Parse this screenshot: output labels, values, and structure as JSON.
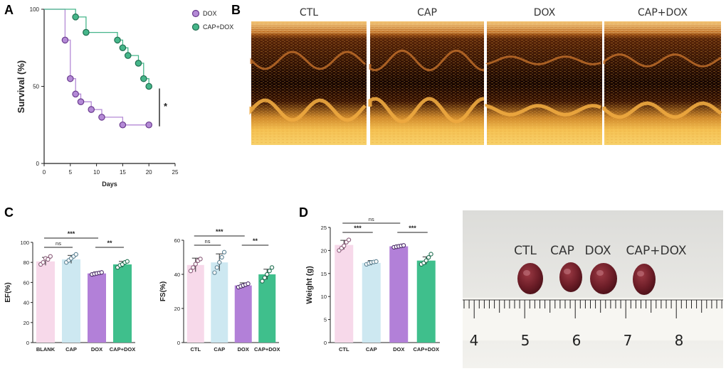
{
  "panels": {
    "a": "A",
    "b": "B",
    "c": "C",
    "d": "D"
  },
  "colors": {
    "dox": "#b48ad6",
    "dox_dark": "#6a3b8f",
    "cap_dox": "#46b68a",
    "cap_dox_dark": "#1f6e50",
    "blank": "#f7d9ea",
    "cap": "#cde8f1",
    "dox_bar": "#b280d8",
    "capdox_bar": "#3fbf8c"
  },
  "chart_data": [
    {
      "type": "line",
      "id": "survival",
      "title": "",
      "xlabel": "Days",
      "ylabel": "Survival (%)",
      "xlim": [
        0,
        25
      ],
      "ylim": [
        0,
        100
      ],
      "xticks": [
        "0",
        "5",
        "10",
        "15",
        "20",
        "25"
      ],
      "yticks": [
        "0",
        "50",
        "100"
      ],
      "significance": "*",
      "legend": "top-right",
      "series": [
        {
          "name": "DOX",
          "steps": [
            [
              0,
              100
            ],
            [
              4,
              100
            ],
            [
              4,
              80
            ],
            [
              5,
              80
            ],
            [
              5,
              55
            ],
            [
              6,
              55
            ],
            [
              6,
              45
            ],
            [
              7,
              45
            ],
            [
              7,
              40
            ],
            [
              9,
              40
            ],
            [
              9,
              35
            ],
            [
              11,
              35
            ],
            [
              11,
              30
            ],
            [
              15,
              30
            ],
            [
              15,
              25
            ],
            [
              20,
              25
            ]
          ],
          "points": [
            [
              4,
              80
            ],
            [
              5,
              55
            ],
            [
              6,
              45
            ],
            [
              7,
              40
            ],
            [
              9,
              35
            ],
            [
              11,
              30
            ],
            [
              15,
              25
            ],
            [
              20,
              25
            ]
          ]
        },
        {
          "name": "CAP+DOX",
          "steps": [
            [
              0,
              100
            ],
            [
              6,
              100
            ],
            [
              6,
              95
            ],
            [
              8,
              95
            ],
            [
              8,
              85
            ],
            [
              14,
              85
            ],
            [
              14,
              80
            ],
            [
              15,
              80
            ],
            [
              15,
              75
            ],
            [
              16,
              75
            ],
            [
              16,
              70
            ],
            [
              18,
              70
            ],
            [
              18,
              65
            ],
            [
              19,
              65
            ],
            [
              19,
              55
            ],
            [
              20,
              55
            ],
            [
              20,
              50
            ]
          ],
          "points": [
            [
              6,
              95
            ],
            [
              8,
              85
            ],
            [
              14,
              80
            ],
            [
              15,
              75
            ],
            [
              16,
              70
            ],
            [
              18,
              65
            ],
            [
              19,
              55
            ],
            [
              20,
              50
            ]
          ]
        }
      ]
    },
    {
      "type": "bar",
      "id": "ef",
      "ylabel": "EF(%)",
      "ylim": [
        0,
        100
      ],
      "yticks": [
        "0",
        "20",
        "40",
        "60",
        "80",
        "100"
      ],
      "categories": [
        "BLANK",
        "CAP",
        "DOX",
        "CAP+DOX"
      ],
      "values": [
        81,
        83,
        69,
        78
      ],
      "errors": [
        4,
        4,
        1.5,
        3
      ],
      "points": [
        [
          78,
          80,
          84,
          83,
          86
        ],
        [
          80,
          82,
          84,
          86,
          88
        ],
        [
          68,
          68.5,
          69,
          69.5,
          70
        ],
        [
          75,
          77,
          78,
          80,
          81
        ]
      ],
      "comparisons": [
        {
          "from": 0,
          "to": 1,
          "label": "ns",
          "level": 1
        },
        {
          "from": 0,
          "to": 2,
          "label": "***",
          "level": 2
        },
        {
          "from": 2,
          "to": 3,
          "label": "**",
          "level": 1
        }
      ]
    },
    {
      "type": "bar",
      "id": "fs",
      "ylabel": "FS(%)",
      "ylim": [
        0,
        60
      ],
      "yticks": [
        "0",
        "20",
        "40",
        "60"
      ],
      "categories": [
        "CTL",
        "CAP",
        "DOX",
        "CAP+DOX"
      ],
      "values": [
        45.5,
        47,
        33.5,
        40
      ],
      "errors": [
        4,
        5,
        1.5,
        3
      ],
      "points": [
        [
          42,
          44,
          46,
          48,
          49
        ],
        [
          41,
          44,
          47,
          50,
          53
        ],
        [
          32.5,
          33,
          33.5,
          34,
          34.5
        ],
        [
          36,
          38,
          40,
          42,
          44
        ]
      ],
      "comparisons": [
        {
          "from": 0,
          "to": 1,
          "label": "ns",
          "level": 1
        },
        {
          "from": 0,
          "to": 2,
          "label": "***",
          "level": 2
        },
        {
          "from": 2,
          "to": 3,
          "label": "**",
          "level": 1
        }
      ]
    },
    {
      "type": "bar",
      "id": "weight",
      "ylabel": "Weight (g)",
      "ylim": [
        0,
        25
      ],
      "yticks": [
        "0",
        "5",
        "10",
        "15",
        "20",
        "25"
      ],
      "categories": [
        "CTL",
        "CAP",
        "DOX",
        "CAP+DOX"
      ],
      "values": [
        21.2,
        17.3,
        20.9,
        17.8
      ],
      "errors": [
        1,
        0.5,
        0.3,
        0.8
      ],
      "points": [
        [
          20,
          20.5,
          21,
          21.8,
          22.3
        ],
        [
          17,
          17.2,
          17.4,
          17.5,
          17.6
        ],
        [
          20.7,
          20.8,
          20.9,
          21,
          21.1
        ],
        [
          17,
          17.3,
          17.8,
          18.5,
          19.2
        ]
      ],
      "comparisons": [
        {
          "from": 0,
          "to": 1,
          "label": "***",
          "level": 1
        },
        {
          "from": 0,
          "to": 2,
          "label": "ns",
          "level": 2
        },
        {
          "from": 2,
          "to": 3,
          "label": "***",
          "level": 1
        }
      ]
    }
  ],
  "echo": {
    "labels": [
      "CTL",
      "CAP",
      "DOX",
      "CAP+DOX"
    ]
  },
  "photo": {
    "labels": [
      "CTL",
      "CAP",
      "DOX",
      "CAP+DOX"
    ],
    "ruler_numbers": [
      "4",
      "5",
      "6",
      "7",
      "8"
    ]
  }
}
